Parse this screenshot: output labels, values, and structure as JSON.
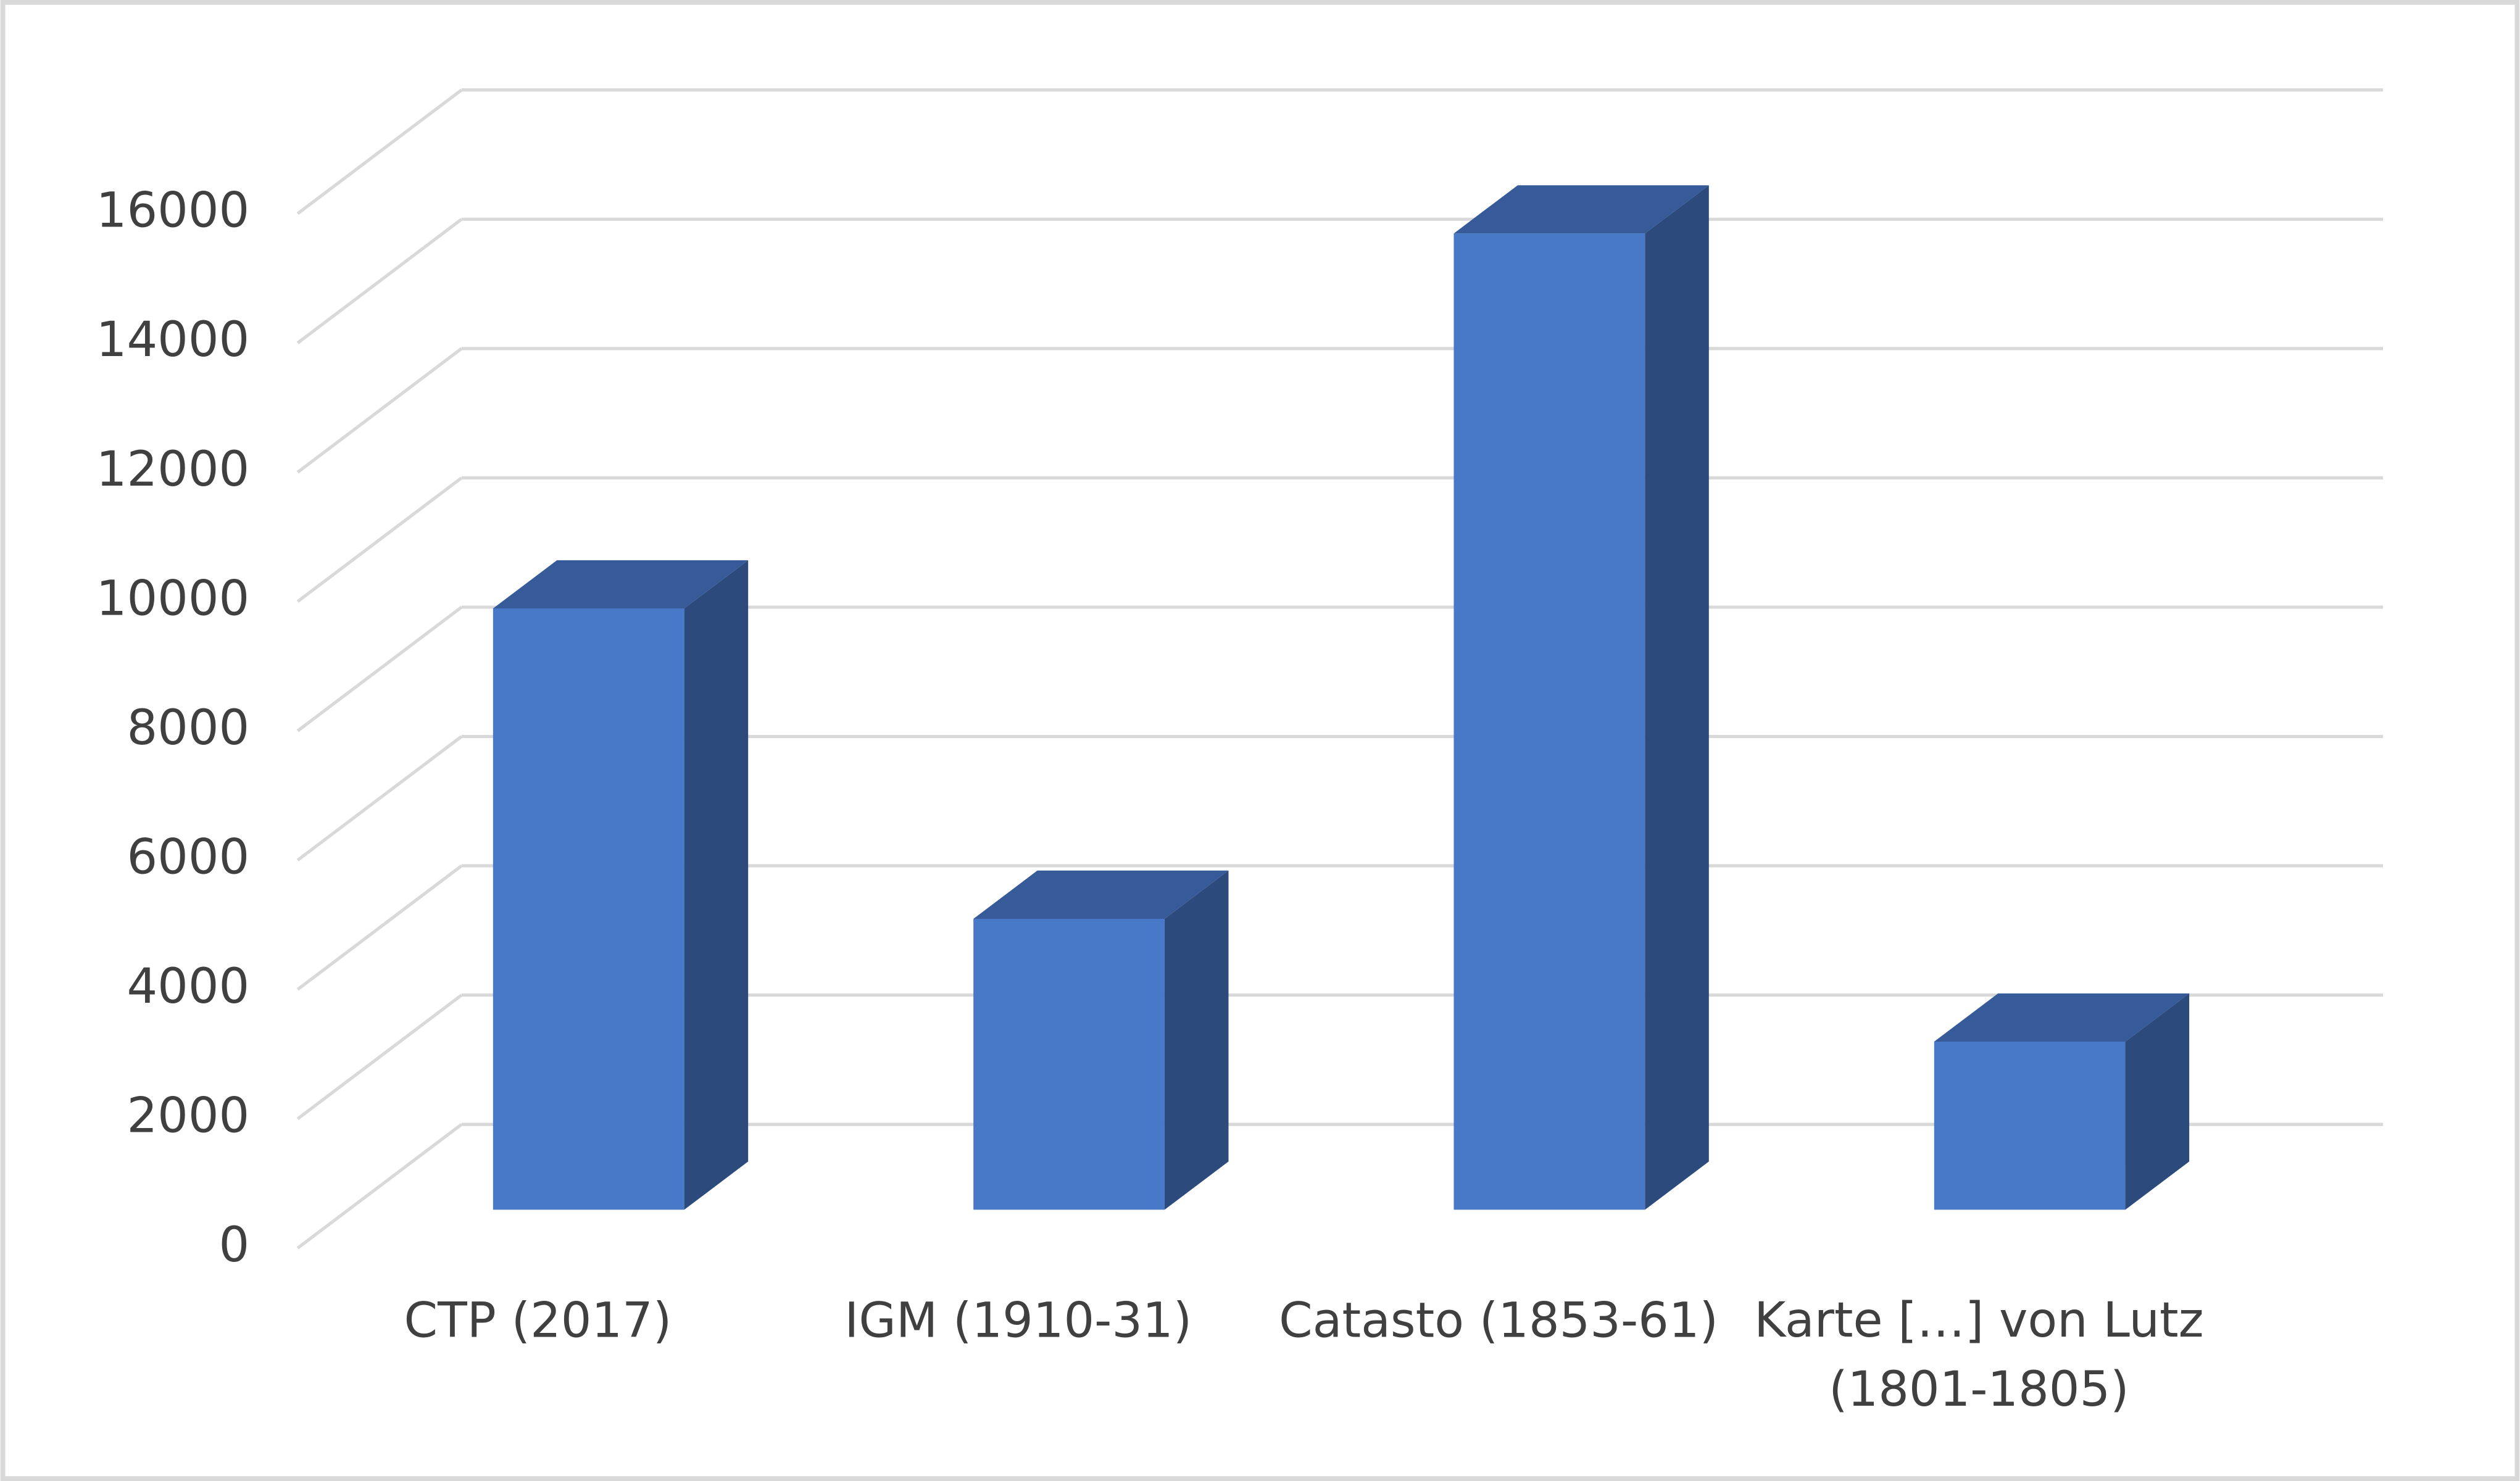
{
  "chart_data": {
    "type": "bar3d",
    "categories": [
      "CTP (2017)",
      "IGM (1910-31)",
      "Catasto (1853-61)",
      "Karte […] von Lutz\n(1801-1805)"
    ],
    "values": [
      9300,
      4500,
      15100,
      2600
    ],
    "color": "#4878c8",
    "ylim": [
      0,
      16000
    ],
    "yticks": [
      0,
      2000,
      4000,
      6000,
      8000,
      10000,
      12000,
      14000,
      16000
    ],
    "grid": true
  }
}
